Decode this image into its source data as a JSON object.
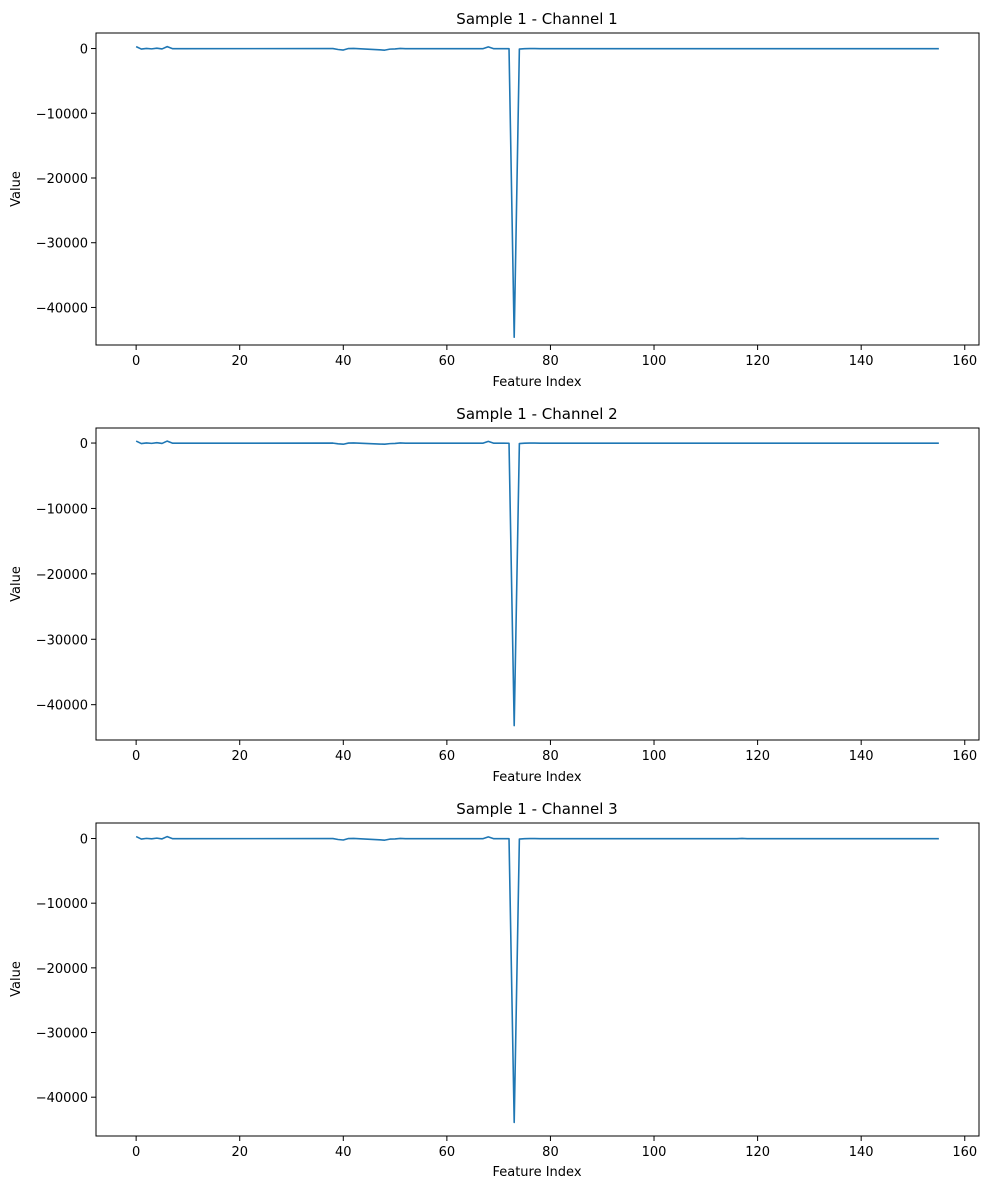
{
  "chart_data": [
    {
      "type": "line",
      "title": "Sample 1 - Channel 1",
      "xlabel": "Feature Index",
      "ylabel": "Value",
      "xlim": [
        -7.75,
        162.75
      ],
      "ylim": [
        -45800,
        2400
      ],
      "xticks": [
        0,
        20,
        40,
        60,
        80,
        100,
        120,
        140,
        160
      ],
      "yticks": [
        0,
        -10000,
        -20000,
        -30000,
        -40000
      ],
      "xtick_labels": [
        "0",
        "20",
        "40",
        "60",
        "80",
        "100",
        "120",
        "140",
        "160"
      ],
      "ytick_labels": [
        "0",
        "−10000",
        "−20000",
        "−30000",
        "−40000"
      ],
      "grid": false,
      "series": [
        {
          "x": [
            0,
            1,
            2,
            3,
            4,
            5,
            6,
            7,
            8,
            38,
            39,
            40,
            41,
            42,
            47,
            48,
            49,
            50,
            51,
            52,
            53,
            67,
            68,
            69,
            70,
            71,
            72,
            73,
            74,
            75,
            76,
            77,
            78,
            155
          ],
          "values": [
            300,
            -80,
            20,
            -50,
            60,
            -60,
            300,
            -20,
            -20,
            -10,
            -150,
            -230,
            0,
            10,
            -200,
            -250,
            -90,
            -60,
            10,
            -20,
            -20,
            -20,
            250,
            -20,
            -20,
            -20,
            -30,
            -44600,
            -80,
            -20,
            0,
            0,
            -20,
            -20
          ]
        }
      ]
    },
    {
      "type": "line",
      "title": "Sample 1 - Channel 2",
      "xlabel": "Feature Index",
      "ylabel": "Value",
      "xlim": [
        -7.75,
        162.75
      ],
      "ylim": [
        -45400,
        2300
      ],
      "xticks": [
        0,
        20,
        40,
        60,
        80,
        100,
        120,
        140,
        160
      ],
      "yticks": [
        0,
        -10000,
        -20000,
        -30000,
        -40000
      ],
      "xtick_labels": [
        "0",
        "20",
        "40",
        "60",
        "80",
        "100",
        "120",
        "140",
        "160"
      ],
      "ytick_labels": [
        "0",
        "−10000",
        "−20000",
        "−30000",
        "−40000"
      ],
      "grid": false,
      "series": [
        {
          "x": [
            0,
            1,
            2,
            3,
            4,
            5,
            6,
            7,
            8,
            38,
            39,
            40,
            41,
            42,
            47,
            48,
            49,
            50,
            51,
            52,
            53,
            67,
            68,
            69,
            70,
            71,
            72,
            73,
            74,
            75,
            76,
            77,
            78,
            155
          ],
          "values": [
            300,
            -80,
            20,
            -50,
            60,
            -60,
            300,
            -20,
            -20,
            -10,
            -120,
            -180,
            0,
            10,
            -150,
            -180,
            -90,
            -60,
            10,
            -20,
            -20,
            -20,
            250,
            -20,
            -20,
            -20,
            -30,
            -43200,
            -80,
            -20,
            0,
            0,
            -20,
            -20
          ]
        }
      ]
    },
    {
      "type": "line",
      "title": "Sample 1 - Channel 3",
      "xlabel": "Feature Index",
      "ylabel": "Value",
      "xlim": [
        -7.75,
        162.75
      ],
      "ylim": [
        -46000,
        2400
      ],
      "xticks": [
        0,
        20,
        40,
        60,
        80,
        100,
        120,
        140,
        160
      ],
      "yticks": [
        0,
        -10000,
        -20000,
        -30000,
        -40000
      ],
      "xtick_labels": [
        "0",
        "20",
        "40",
        "60",
        "80",
        "100",
        "120",
        "140",
        "160"
      ],
      "ytick_labels": [
        "0",
        "−10000",
        "−20000",
        "−30000",
        "−40000"
      ],
      "grid": false,
      "series": [
        {
          "x": [
            0,
            1,
            2,
            3,
            4,
            5,
            6,
            7,
            8,
            38,
            39,
            40,
            41,
            42,
            47,
            48,
            49,
            50,
            51,
            52,
            53,
            67,
            68,
            69,
            70,
            71,
            72,
            73,
            74,
            75,
            76,
            77,
            78,
            116,
            117,
            118,
            155
          ],
          "values": [
            300,
            -80,
            20,
            -50,
            60,
            -60,
            300,
            -20,
            -20,
            -10,
            -150,
            -230,
            0,
            10,
            -200,
            -250,
            -90,
            -60,
            10,
            -20,
            -20,
            -20,
            250,
            -20,
            -20,
            -20,
            -30,
            -43900,
            -80,
            -20,
            0,
            0,
            -20,
            -20,
            10,
            -20,
            -20
          ]
        }
      ]
    }
  ],
  "colors": {
    "series": "#1f77b4",
    "axes": "#000000",
    "background": "#ffffff"
  }
}
